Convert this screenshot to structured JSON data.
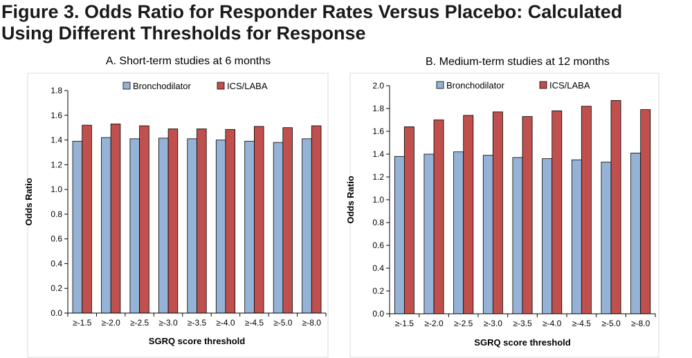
{
  "figure": {
    "title_line1": "Figure 3. Odds Ratio for Responder Rates Versus Placebo: Calculated",
    "title_line2": "Using Different Thresholds for Response"
  },
  "chart_data": [
    {
      "type": "bar",
      "title": "A. Short-term studies at 6 months",
      "xlabel": "SGRQ score threshold",
      "ylabel": "Odds Ratio",
      "categories": [
        "≥-1.5",
        "≥-2.0",
        "≥-2.5",
        "≥-3.0",
        "≥-3.5",
        "≥-4.0",
        "≥-4.5",
        "≥-5.0",
        "≥-8.0"
      ],
      "series": [
        {
          "name": "Bronchodilator",
          "color": "#95B3D7",
          "values": [
            1.39,
            1.42,
            1.41,
            1.415,
            1.41,
            1.4,
            1.39,
            1.38,
            1.41
          ]
        },
        {
          "name": "ICS/LABA",
          "color": "#C0504D",
          "values": [
            1.52,
            1.53,
            1.515,
            1.49,
            1.49,
            1.485,
            1.51,
            1.5,
            1.515
          ]
        }
      ],
      "ylim": [
        0,
        1.8
      ],
      "yticks": [
        "0.0",
        "0.2",
        "0.4",
        "0.6",
        "0.8",
        "1.0",
        "1.2",
        "1.4",
        "1.6",
        "1.8"
      ],
      "grid": false,
      "legend": "top"
    },
    {
      "type": "bar",
      "title": "B. Medium-term studies at 12 months",
      "xlabel": "SGRQ score threshold",
      "ylabel": "Odds Ratio",
      "categories": [
        "≥-1.5",
        "≥-2.0",
        "≥-2.5",
        "≥-3.0",
        "≥-3.5",
        "≥-4.0",
        "≥-4.5",
        "≥-5.0",
        "≥-8.0"
      ],
      "series": [
        {
          "name": "Bronchodilator",
          "color": "#95B3D7",
          "values": [
            1.38,
            1.4,
            1.42,
            1.39,
            1.37,
            1.36,
            1.35,
            1.33,
            1.41
          ]
        },
        {
          "name": "ICS/LABA",
          "color": "#C0504D",
          "values": [
            1.64,
            1.7,
            1.74,
            1.77,
            1.73,
            1.78,
            1.82,
            1.87,
            1.79
          ]
        }
      ],
      "ylim": [
        0,
        2.0
      ],
      "yticks": [
        "0.0",
        "0.2",
        "0.4",
        "0.6",
        "0.8",
        "1.0",
        "1.2",
        "1.4",
        "1.6",
        "1.8",
        "2.0"
      ],
      "grid": false,
      "legend": "top"
    }
  ]
}
